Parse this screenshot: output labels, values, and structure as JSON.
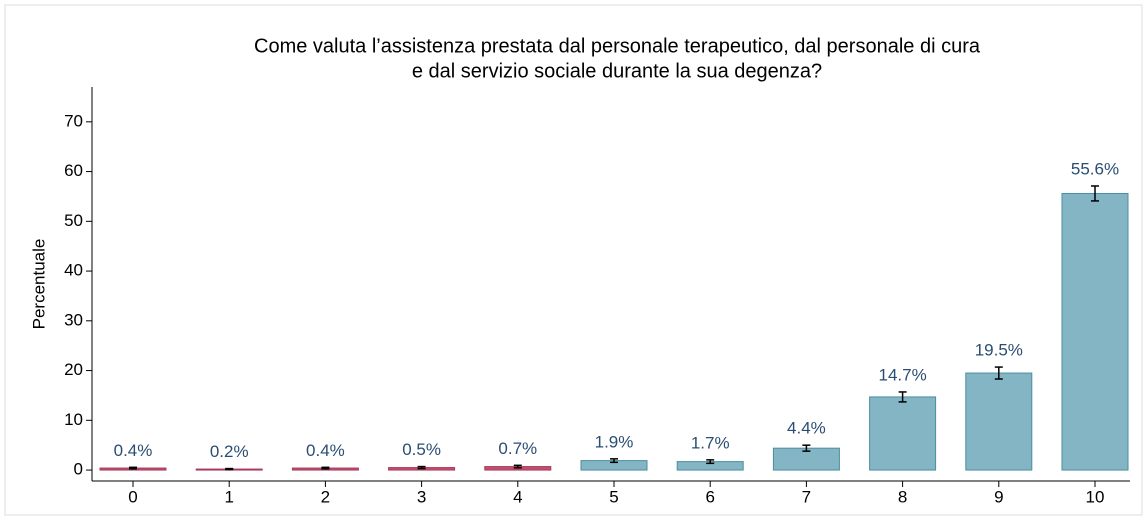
{
  "chart_data": {
    "type": "bar",
    "title": [
      "Come valuta l’assistenza prestata dal personale terapeutico, dal personale di cura",
      "e dal servizio sociale durante la sua degenza?"
    ],
    "ylabel": "Percentuale",
    "categories": [
      "0",
      "1",
      "2",
      "3",
      "4",
      "5",
      "6",
      "7",
      "8",
      "9",
      "10"
    ],
    "values": [
      0.4,
      0.2,
      0.4,
      0.5,
      0.7,
      1.9,
      1.7,
      4.4,
      14.7,
      19.5,
      55.6
    ],
    "value_labels": [
      "0.4%",
      "0.2%",
      "0.4%",
      "0.5%",
      "0.7%",
      "1.9%",
      "1.7%",
      "4.4%",
      "14.7%",
      "19.5%",
      "55.6%"
    ],
    "errors": [
      0.15,
      0.1,
      0.15,
      0.2,
      0.25,
      0.35,
      0.35,
      0.6,
      1.0,
      1.2,
      1.5
    ],
    "colors": [
      "#c0506e",
      "#c0506e",
      "#c0506e",
      "#c0506e",
      "#c0506e",
      "#84b5c4",
      "#84b5c4",
      "#84b5c4",
      "#84b5c4",
      "#84b5c4",
      "#84b5c4"
    ],
    "ylim": [
      -2.2,
      77
    ],
    "yticks": [
      0,
      10,
      20,
      30,
      40,
      50,
      60,
      70
    ]
  }
}
